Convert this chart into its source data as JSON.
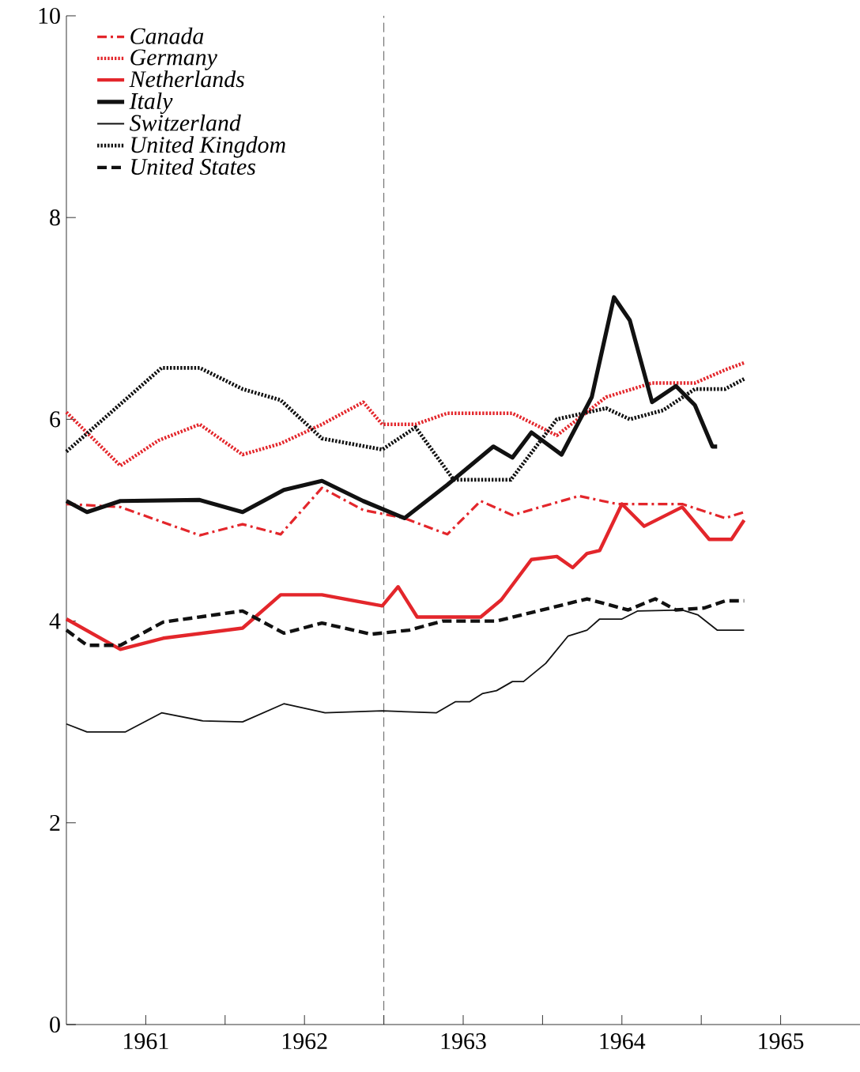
{
  "chart_data": {
    "type": "line",
    "xlim": [
      1961,
      1966
    ],
    "ylim": [
      0,
      10
    ],
    "xticks": [
      {
        "value": 1961.5,
        "label": "1961"
      },
      {
        "value": 1962,
        "label": null
      },
      {
        "value": 1962.5,
        "label": "1962"
      },
      {
        "value": 1963,
        "label": null
      },
      {
        "value": 1963.5,
        "label": "1963"
      },
      {
        "value": 1964,
        "label": null
      },
      {
        "value": 1964.5,
        "label": "1964"
      },
      {
        "value": 1965,
        "label": null
      },
      {
        "value": 1965.5,
        "label": "1965"
      }
    ],
    "yticks": [
      0,
      2,
      4,
      6,
      8,
      10
    ],
    "legend": "top left",
    "grid": false,
    "marker": "none",
    "ref_lines": [
      {
        "axis": "x",
        "value": 1963,
        "color": "#333333",
        "line_style": "dashed"
      }
    ],
    "series": [
      {
        "name": "Canada",
        "color": "#e3262b",
        "line_style": "dashdot",
        "x": [
          1961.0,
          1961.34,
          1961.84,
          1962.11,
          1962.35,
          1962.61,
          1962.87,
          1963.13,
          1963.4,
          1963.61,
          1963.81,
          1964.23,
          1964.47,
          1964.88,
          1965.15,
          1965.27
        ],
        "values": [
          5.16,
          5.13,
          4.85,
          4.96,
          4.86,
          5.32,
          5.1,
          5.02,
          4.86,
          5.19,
          5.05,
          5.24,
          5.16,
          5.16,
          5.02,
          5.08
        ]
      },
      {
        "name": "Germany",
        "color": "#e3262b",
        "line_style": "dotted",
        "x": [
          1961.0,
          1961.34,
          1961.58,
          1961.84,
          1962.11,
          1962.35,
          1962.61,
          1962.87,
          1962.99,
          1963.2,
          1963.4,
          1963.81,
          1964.09,
          1964.4,
          1964.69,
          1964.96,
          1965.15,
          1965.27
        ],
        "values": [
          6.07,
          5.54,
          5.79,
          5.95,
          5.65,
          5.76,
          5.95,
          6.17,
          5.95,
          5.95,
          6.06,
          6.06,
          5.84,
          6.22,
          6.36,
          6.36,
          6.49,
          6.56
        ]
      },
      {
        "name": "Netherlands",
        "color": "#e3262b",
        "line_style": "solid",
        "x": [
          1961.0,
          1961.34,
          1961.61,
          1962.11,
          1962.35,
          1962.61,
          1962.99,
          1963.09,
          1963.21,
          1963.61,
          1963.74,
          1963.93,
          1964.09,
          1964.19,
          1964.28,
          1964.36,
          1964.5,
          1964.64,
          1964.88,
          1965.05,
          1965.19,
          1965.27
        ],
        "values": [
          4.02,
          3.72,
          3.83,
          3.93,
          4.26,
          4.26,
          4.15,
          4.34,
          4.04,
          4.04,
          4.21,
          4.61,
          4.64,
          4.53,
          4.67,
          4.7,
          5.16,
          4.94,
          5.13,
          4.81,
          4.81,
          5.0
        ]
      },
      {
        "name": "Italy",
        "color": "#111111",
        "line_style": "solid",
        "x": [
          1961.0,
          1961.13,
          1961.34,
          1961.84,
          1962.11,
          1962.37,
          1962.61,
          1962.87,
          1963.13,
          1963.4,
          1963.69,
          1963.81,
          1963.93,
          1964.12,
          1964.31,
          1964.45,
          1964.55,
          1964.69,
          1964.84,
          1964.96,
          1965.07,
          1965.1
        ],
        "values": [
          5.19,
          5.08,
          5.19,
          5.2,
          5.08,
          5.3,
          5.39,
          5.19,
          5.02,
          5.35,
          5.73,
          5.62,
          5.87,
          5.65,
          6.22,
          7.21,
          6.98,
          6.17,
          6.33,
          6.14,
          5.73,
          5.73
        ]
      },
      {
        "name": "Switzerland",
        "color": "#111111",
        "line_style": "solid",
        "x": [
          1961.0,
          1961.13,
          1961.37,
          1961.6,
          1961.86,
          1962.11,
          1962.37,
          1962.63,
          1962.99,
          1963.33,
          1963.45,
          1963.54,
          1963.62,
          1963.71,
          1963.81,
          1963.88,
          1964.02,
          1964.16,
          1964.28,
          1964.36,
          1964.5,
          1964.6,
          1964.88,
          1964.98,
          1965.1,
          1965.27
        ],
        "values": [
          2.98,
          2.9,
          2.9,
          3.09,
          3.01,
          3.0,
          3.18,
          3.09,
          3.11,
          3.09,
          3.2,
          3.2,
          3.28,
          3.31,
          3.4,
          3.4,
          3.58,
          3.85,
          3.91,
          4.02,
          4.02,
          4.1,
          4.11,
          4.06,
          3.91,
          3.91
        ]
      },
      {
        "name": "United Kingdom",
        "color": "#111111",
        "line_style": "dotted",
        "x": [
          1961.0,
          1961.6,
          1961.84,
          1962.11,
          1962.35,
          1962.61,
          1962.99,
          1963.2,
          1963.44,
          1963.8,
          1964.09,
          1964.4,
          1964.55,
          1964.76,
          1964.96,
          1965.15,
          1965.27
        ],
        "values": [
          5.68,
          6.51,
          6.51,
          6.3,
          6.19,
          5.81,
          5.7,
          5.92,
          5.4,
          5.4,
          6.0,
          6.11,
          6.0,
          6.09,
          6.3,
          6.3,
          6.4
        ]
      },
      {
        "name": "United States",
        "color": "#111111",
        "line_style": "dashed",
        "x": [
          1961.0,
          1961.13,
          1961.34,
          1961.61,
          1962.11,
          1962.37,
          1962.61,
          1962.92,
          1963.16,
          1963.37,
          1963.71,
          1964.05,
          1964.28,
          1964.54,
          1964.71,
          1964.84,
          1965.02,
          1965.15,
          1965.27
        ],
        "values": [
          3.91,
          3.76,
          3.76,
          3.99,
          4.1,
          3.88,
          3.98,
          3.87,
          3.91,
          4.0,
          4.0,
          4.13,
          4.22,
          4.11,
          4.22,
          4.11,
          4.13,
          4.2,
          4.2
        ]
      }
    ]
  }
}
